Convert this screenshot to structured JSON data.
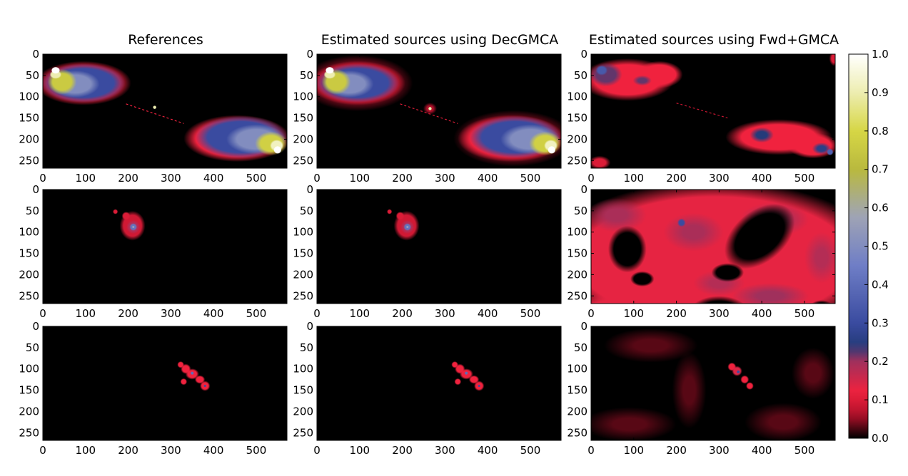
{
  "figure": {
    "column_titles": [
      "References",
      "Estimated sources using DecGMCA",
      "Estimated sources using Fwd+GMCA"
    ]
  },
  "chart_data": {
    "type": "heatmap",
    "grid": {
      "rows": 3,
      "cols": 3
    },
    "axes": {
      "x_ticks": [
        0,
        100,
        200,
        300,
        400,
        500
      ],
      "y_ticks": [
        0,
        50,
        100,
        150,
        200,
        250
      ],
      "xlim": [
        0,
        572
      ],
      "ylim": [
        268,
        0
      ],
      "grid": false
    },
    "colorbar": {
      "range": [
        0.0,
        1.0
      ],
      "ticks": [
        "0.0",
        "0.1",
        "0.2",
        "0.3",
        "0.4",
        "0.5",
        "0.6",
        "0.7",
        "0.8",
        "0.9",
        "1.0"
      ],
      "placement": "right",
      "colors": [
        [
          0.0,
          "#000000"
        ],
        [
          0.06,
          "#b0102a"
        ],
        [
          0.12,
          "#f0223e"
        ],
        [
          0.2,
          "#a0305c"
        ],
        [
          0.24,
          "#243b7a"
        ],
        [
          0.3,
          "#3a4ba0"
        ],
        [
          0.45,
          "#6f7ec6"
        ],
        [
          0.58,
          "#a0a4b4"
        ],
        [
          0.7,
          "#b9b93e"
        ],
        [
          0.8,
          "#d6d645"
        ],
        [
          0.9,
          "#ededb0"
        ],
        [
          1.0,
          "#ffffff"
        ]
      ]
    },
    "panels": [
      {
        "row": 0,
        "col": 0,
        "source": "extended radio galaxy",
        "blobs": [
          {
            "x": 95,
            "y": 68,
            "rx": 112,
            "ry": 52,
            "value": 0.1,
            "fuzz": 0.18
          },
          {
            "x": 95,
            "y": 68,
            "rx": 98,
            "ry": 46,
            "value": 0.3,
            "fuzz": 0.22
          },
          {
            "x": 75,
            "y": 70,
            "rx": 58,
            "ry": 32,
            "value": 0.5,
            "fuzz": 0.3
          },
          {
            "x": 45,
            "y": 65,
            "rx": 34,
            "ry": 30,
            "value": 0.76,
            "fuzz": 0.3
          },
          {
            "x": 30,
            "y": 48,
            "rx": 14,
            "ry": 10,
            "value": 0.9,
            "fuzz": 0.2
          },
          {
            "x": 30,
            "y": 38,
            "rx": 10,
            "ry": 8,
            "value": 1.0,
            "fuzz": 0.1
          },
          {
            "x": 455,
            "y": 198,
            "rx": 125,
            "ry": 55,
            "value": 0.12,
            "fuzz": 0.18
          },
          {
            "x": 465,
            "y": 195,
            "rx": 108,
            "ry": 50,
            "value": 0.3,
            "fuzz": 0.22
          },
          {
            "x": 500,
            "y": 200,
            "rx": 70,
            "ry": 35,
            "value": 0.5,
            "fuzz": 0.3
          },
          {
            "x": 535,
            "y": 210,
            "rx": 38,
            "ry": 28,
            "value": 0.78,
            "fuzz": 0.3
          },
          {
            "x": 548,
            "y": 215,
            "rx": 16,
            "ry": 14,
            "value": 0.92,
            "fuzz": 0.2
          },
          {
            "x": 550,
            "y": 225,
            "rx": 9,
            "ry": 9,
            "value": 1.0,
            "fuzz": 0.1
          },
          {
            "x": 262,
            "y": 125,
            "rx": 4,
            "ry": 4,
            "value": 0.9,
            "fuzz": 0.1
          }
        ],
        "jets": [
          {
            "x1": 195,
            "y1": 117,
            "x2": 330,
            "y2": 163,
            "value": 0.12
          }
        ]
      },
      {
        "row": 0,
        "col": 1,
        "source": "extended radio galaxy",
        "blobs": [
          {
            "x": 95,
            "y": 68,
            "rx": 130,
            "ry": 66,
            "value": 0.06,
            "fuzz": 0.4
          },
          {
            "x": 95,
            "y": 68,
            "rx": 112,
            "ry": 52,
            "value": 0.1,
            "fuzz": 0.18
          },
          {
            "x": 95,
            "y": 68,
            "rx": 98,
            "ry": 46,
            "value": 0.3,
            "fuzz": 0.22
          },
          {
            "x": 75,
            "y": 70,
            "rx": 58,
            "ry": 32,
            "value": 0.5,
            "fuzz": 0.3
          },
          {
            "x": 45,
            "y": 65,
            "rx": 34,
            "ry": 30,
            "value": 0.76,
            "fuzz": 0.3
          },
          {
            "x": 30,
            "y": 48,
            "rx": 14,
            "ry": 10,
            "value": 0.9,
            "fuzz": 0.2
          },
          {
            "x": 30,
            "y": 38,
            "rx": 10,
            "ry": 8,
            "value": 1.0,
            "fuzz": 0.1
          },
          {
            "x": 460,
            "y": 198,
            "rx": 140,
            "ry": 66,
            "value": 0.06,
            "fuzz": 0.4
          },
          {
            "x": 455,
            "y": 198,
            "rx": 125,
            "ry": 55,
            "value": 0.12,
            "fuzz": 0.18
          },
          {
            "x": 465,
            "y": 195,
            "rx": 108,
            "ry": 50,
            "value": 0.3,
            "fuzz": 0.22
          },
          {
            "x": 500,
            "y": 200,
            "rx": 70,
            "ry": 35,
            "value": 0.5,
            "fuzz": 0.3
          },
          {
            "x": 535,
            "y": 210,
            "rx": 38,
            "ry": 28,
            "value": 0.78,
            "fuzz": 0.3
          },
          {
            "x": 548,
            "y": 215,
            "rx": 16,
            "ry": 14,
            "value": 0.92,
            "fuzz": 0.2
          },
          {
            "x": 550,
            "y": 225,
            "rx": 9,
            "ry": 9,
            "value": 1.0,
            "fuzz": 0.1
          },
          {
            "x": 265,
            "y": 128,
            "rx": 16,
            "ry": 14,
            "value": 0.06,
            "fuzz": 0.5
          },
          {
            "x": 265,
            "y": 128,
            "rx": 4,
            "ry": 4,
            "value": 0.9,
            "fuzz": 0.1
          }
        ],
        "jets": [
          {
            "x1": 195,
            "y1": 117,
            "x2": 330,
            "y2": 163,
            "value": 0.1
          }
        ]
      },
      {
        "row": 0,
        "col": 2,
        "source": "extended radio galaxy",
        "blobs": [
          {
            "x": 85,
            "y": 60,
            "rx": 110,
            "ry": 50,
            "value": 0.12,
            "fuzz": 0.25
          },
          {
            "x": 160,
            "y": 48,
            "rx": 55,
            "ry": 32,
            "value": 0.12,
            "fuzz": 0.25
          },
          {
            "x": 35,
            "y": 48,
            "rx": 38,
            "ry": 28,
            "value": 0.22,
            "fuzz": 0.35
          },
          {
            "x": 25,
            "y": 38,
            "rx": 14,
            "ry": 12,
            "value": 0.34,
            "fuzz": 0.3
          },
          {
            "x": 120,
            "y": 62,
            "rx": 22,
            "ry": 12,
            "value": 0.22,
            "fuzz": 0.5
          },
          {
            "x": 440,
            "y": 195,
            "rx": 125,
            "ry": 42,
            "value": 0.12,
            "fuzz": 0.25
          },
          {
            "x": 520,
            "y": 215,
            "rx": 60,
            "ry": 30,
            "value": 0.12,
            "fuzz": 0.25
          },
          {
            "x": 400,
            "y": 190,
            "rx": 28,
            "ry": 18,
            "value": 0.24,
            "fuzz": 0.5
          },
          {
            "x": 540,
            "y": 222,
            "rx": 22,
            "ry": 14,
            "value": 0.26,
            "fuzz": 0.5
          },
          {
            "x": 560,
            "y": 230,
            "rx": 8,
            "ry": 8,
            "value": 0.36,
            "fuzz": 0.3
          },
          {
            "x": 20,
            "y": 255,
            "rx": 26,
            "ry": 16,
            "value": 0.1,
            "fuzz": 0.4
          },
          {
            "x": 570,
            "y": 10,
            "rx": 12,
            "ry": 18,
            "value": 0.1,
            "fuzz": 0.4
          }
        ],
        "jets": [
          {
            "x1": 200,
            "y1": 115,
            "x2": 320,
            "y2": 150,
            "value": 0.08
          }
        ]
      },
      {
        "row": 1,
        "col": 0,
        "source": "compact spiral",
        "blobs": [
          {
            "x": 210,
            "y": 85,
            "rx": 30,
            "ry": 35,
            "value": 0.09,
            "fuzz": 0.25
          },
          {
            "x": 195,
            "y": 62,
            "rx": 10,
            "ry": 10,
            "value": 0.1,
            "fuzz": 0.3
          },
          {
            "x": 170,
            "y": 52,
            "rx": 6,
            "ry": 6,
            "value": 0.1,
            "fuzz": 0.3
          },
          {
            "x": 212,
            "y": 88,
            "rx": 16,
            "ry": 16,
            "value": 0.18,
            "fuzz": 0.3
          },
          {
            "x": 212,
            "y": 88,
            "rx": 9,
            "ry": 9,
            "value": 0.42,
            "fuzz": 0.3
          },
          {
            "x": 212,
            "y": 88,
            "rx": 3,
            "ry": 3,
            "value": 0.55,
            "fuzz": 0.2
          }
        ],
        "jets": []
      },
      {
        "row": 1,
        "col": 1,
        "source": "compact spiral",
        "blobs": [
          {
            "x": 210,
            "y": 85,
            "rx": 30,
            "ry": 35,
            "value": 0.09,
            "fuzz": 0.25
          },
          {
            "x": 195,
            "y": 62,
            "rx": 10,
            "ry": 10,
            "value": 0.1,
            "fuzz": 0.3
          },
          {
            "x": 170,
            "y": 52,
            "rx": 6,
            "ry": 6,
            "value": 0.1,
            "fuzz": 0.3
          },
          {
            "x": 212,
            "y": 88,
            "rx": 16,
            "ry": 16,
            "value": 0.18,
            "fuzz": 0.3
          },
          {
            "x": 212,
            "y": 88,
            "rx": 9,
            "ry": 9,
            "value": 0.42,
            "fuzz": 0.3
          },
          {
            "x": 212,
            "y": 88,
            "rx": 3,
            "ry": 3,
            "value": 0.55,
            "fuzz": 0.2
          }
        ],
        "jets": []
      },
      {
        "row": 1,
        "col": 2,
        "source": "compact spiral",
        "blobs": [
          {
            "x": 290,
            "y": 165,
            "rx": 400,
            "ry": 185,
            "value": 0.13,
            "fuzz": 0.15
          },
          {
            "x": 70,
            "y": 330,
            "rx": 150,
            "ry": 90,
            "value": 0.13,
            "fuzz": 0.15
          },
          {
            "x": 60,
            "y": 60,
            "rx": 70,
            "ry": 40,
            "value": 0.19,
            "fuzz": 0.6
          },
          {
            "x": 240,
            "y": 100,
            "rx": 70,
            "ry": 45,
            "value": 0.19,
            "fuzz": 0.6
          },
          {
            "x": 430,
            "y": 70,
            "rx": 80,
            "ry": 40,
            "value": 0.19,
            "fuzz": 0.6
          },
          {
            "x": 420,
            "y": 250,
            "rx": 90,
            "ry": 30,
            "value": 0.2,
            "fuzz": 0.6
          },
          {
            "x": 300,
            "y": 220,
            "rx": 60,
            "ry": 30,
            "value": 0.18,
            "fuzz": 0.6
          },
          {
            "x": 540,
            "y": 160,
            "rx": 40,
            "ry": 60,
            "value": 0.18,
            "fuzz": 0.6
          },
          {
            "x": 212,
            "y": 78,
            "rx": 10,
            "ry": 10,
            "value": 0.3,
            "fuzz": 0.4
          }
        ],
        "holes": [
          {
            "x": 395,
            "y": 110,
            "rx": 95,
            "ry": 60,
            "rot": -40
          },
          {
            "x": 320,
            "y": 195,
            "rx": 38,
            "ry": 22,
            "rot": 0
          },
          {
            "x": 85,
            "y": 140,
            "rx": 45,
            "ry": 55,
            "rot": 0
          },
          {
            "x": 120,
            "y": 210,
            "rx": 28,
            "ry": 18,
            "rot": 0
          },
          {
            "x": 300,
            "y": 290,
            "rx": 70,
            "ry": 40,
            "rot": 0
          },
          {
            "x": 540,
            "y": 280,
            "rx": 30,
            "ry": 20,
            "rot": 0
          }
        ],
        "jets": []
      },
      {
        "row": 2,
        "col": 0,
        "source": "point-source chain",
        "blobs": [
          {
            "x": 323,
            "y": 90,
            "rx": 8,
            "ry": 8,
            "value": 0.12,
            "fuzz": 0.3
          },
          {
            "x": 335,
            "y": 100,
            "rx": 12,
            "ry": 12,
            "value": 0.12,
            "fuzz": 0.3
          },
          {
            "x": 350,
            "y": 112,
            "rx": 16,
            "ry": 13,
            "value": 0.12,
            "fuzz": 0.3
          },
          {
            "x": 368,
            "y": 125,
            "rx": 12,
            "ry": 10,
            "value": 0.12,
            "fuzz": 0.3
          },
          {
            "x": 380,
            "y": 140,
            "rx": 12,
            "ry": 12,
            "value": 0.12,
            "fuzz": 0.3
          },
          {
            "x": 330,
            "y": 130,
            "rx": 8,
            "ry": 8,
            "value": 0.12,
            "fuzz": 0.3
          },
          {
            "x": 350,
            "y": 110,
            "rx": 4,
            "ry": 4,
            "value": 0.4,
            "fuzz": 0.3
          },
          {
            "x": 380,
            "y": 140,
            "rx": 3,
            "ry": 3,
            "value": 0.3,
            "fuzz": 0.3
          }
        ],
        "jets": []
      },
      {
        "row": 2,
        "col": 1,
        "source": "point-source chain",
        "blobs": [
          {
            "x": 323,
            "y": 90,
            "rx": 8,
            "ry": 8,
            "value": 0.12,
            "fuzz": 0.3
          },
          {
            "x": 335,
            "y": 100,
            "rx": 12,
            "ry": 12,
            "value": 0.12,
            "fuzz": 0.3
          },
          {
            "x": 350,
            "y": 112,
            "rx": 16,
            "ry": 13,
            "value": 0.12,
            "fuzz": 0.3
          },
          {
            "x": 368,
            "y": 125,
            "rx": 12,
            "ry": 10,
            "value": 0.12,
            "fuzz": 0.3
          },
          {
            "x": 380,
            "y": 140,
            "rx": 12,
            "ry": 12,
            "value": 0.12,
            "fuzz": 0.3
          },
          {
            "x": 330,
            "y": 130,
            "rx": 8,
            "ry": 8,
            "value": 0.12,
            "fuzz": 0.3
          },
          {
            "x": 350,
            "y": 110,
            "rx": 4,
            "ry": 4,
            "value": 0.4,
            "fuzz": 0.3
          },
          {
            "x": 380,
            "y": 140,
            "rx": 3,
            "ry": 3,
            "value": 0.3,
            "fuzz": 0.3
          }
        ],
        "jets": []
      },
      {
        "row": 2,
        "col": 2,
        "source": "point-source chain",
        "blobs": [
          {
            "x": 140,
            "y": 45,
            "rx": 110,
            "ry": 40,
            "value": 0.03,
            "fuzz": 0.6
          },
          {
            "x": 90,
            "y": 230,
            "rx": 110,
            "ry": 40,
            "value": 0.03,
            "fuzz": 0.6
          },
          {
            "x": 450,
            "y": 225,
            "rx": 90,
            "ry": 45,
            "value": 0.03,
            "fuzz": 0.6
          },
          {
            "x": 520,
            "y": 110,
            "rx": 50,
            "ry": 60,
            "value": 0.03,
            "fuzz": 0.6
          },
          {
            "x": 230,
            "y": 150,
            "rx": 40,
            "ry": 90,
            "value": 0.03,
            "fuzz": 0.6
          },
          {
            "x": 330,
            "y": 95,
            "rx": 10,
            "ry": 10,
            "value": 0.12,
            "fuzz": 0.3
          },
          {
            "x": 342,
            "y": 105,
            "rx": 12,
            "ry": 12,
            "value": 0.14,
            "fuzz": 0.3
          },
          {
            "x": 360,
            "y": 125,
            "rx": 10,
            "ry": 10,
            "value": 0.12,
            "fuzz": 0.3
          },
          {
            "x": 372,
            "y": 140,
            "rx": 9,
            "ry": 9,
            "value": 0.12,
            "fuzz": 0.3
          },
          {
            "x": 345,
            "y": 107,
            "rx": 4,
            "ry": 4,
            "value": 0.3,
            "fuzz": 0.3
          }
        ],
        "jets": []
      }
    ]
  }
}
